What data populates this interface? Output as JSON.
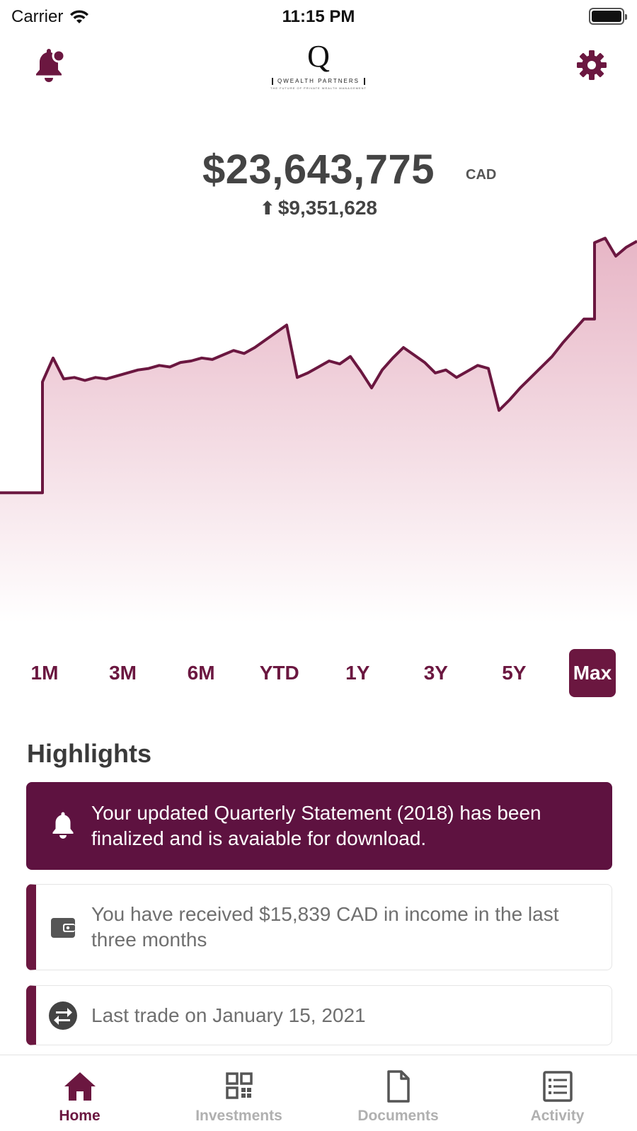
{
  "status_bar": {
    "carrier": "Carrier",
    "time": "11:15 PM"
  },
  "header": {
    "logo_letter": "Q",
    "logo_name": "QWEALTH PARTNERS",
    "logo_tagline": "THE FUTURE OF PRIVATE WEALTH MANAGEMENT",
    "notification_icon": "bell-with-badge-icon",
    "settings_icon": "gear-icon"
  },
  "portfolio": {
    "balance": "$23,643,775",
    "currency": "CAD",
    "change_arrow": "⬆",
    "change": "$9,351,628"
  },
  "chart_data": {
    "type": "area",
    "title": "",
    "xlabel": "",
    "ylabel": "",
    "line_color": "#6b1740",
    "fill_color": "#e8b6c6",
    "x": [
      0,
      1,
      2,
      3,
      4,
      5,
      6,
      7,
      8,
      9,
      10,
      11,
      12,
      13,
      14,
      15,
      16,
      17,
      18,
      19,
      20,
      21,
      22,
      23,
      24,
      25,
      26,
      27,
      28,
      29,
      30,
      31,
      32,
      33,
      34,
      35,
      36,
      37,
      38,
      39,
      40,
      41,
      42,
      43,
      44,
      45,
      46,
      47,
      48,
      49,
      50,
      51,
      52,
      53,
      54,
      55,
      56,
      57,
      58,
      59,
      60
    ],
    "values": [
      6.8,
      6.8,
      6.8,
      6.8,
      14.2,
      15.8,
      14.4,
      14.5,
      14.3,
      14.5,
      14.4,
      14.6,
      14.8,
      15.0,
      15.1,
      15.3,
      15.2,
      15.5,
      15.6,
      15.8,
      15.7,
      16.0,
      16.3,
      16.1,
      16.5,
      17.0,
      17.5,
      18.0,
      14.5,
      14.8,
      15.2,
      15.6,
      15.4,
      15.9,
      14.9,
      13.8,
      15.0,
      15.8,
      16.5,
      16.0,
      15.5,
      14.8,
      15.0,
      14.5,
      14.9,
      15.3,
      15.1,
      12.3,
      13.0,
      13.8,
      14.5,
      15.2,
      15.9,
      16.8,
      17.6,
      18.4,
      23.5,
      23.8,
      22.6,
      23.2,
      23.6
    ],
    "ylim": [
      0,
      26
    ]
  },
  "ranges": [
    {
      "label": "1M",
      "active": false
    },
    {
      "label": "3M",
      "active": false
    },
    {
      "label": "6M",
      "active": false
    },
    {
      "label": "YTD",
      "active": false
    },
    {
      "label": "1Y",
      "active": false
    },
    {
      "label": "3Y",
      "active": false
    },
    {
      "label": "5Y",
      "active": false
    },
    {
      "label": "Max",
      "active": true
    }
  ],
  "highlights": {
    "title": "Highlights",
    "statement": {
      "icon": "bell-icon",
      "text": "Your updated Quarterly  Statement (2018) has been finalized and is avaiable for download."
    },
    "income": {
      "icon": "wallet-icon",
      "text": "You have received $15,839 CAD in income in the last three months"
    },
    "trade": {
      "icon": "exchange-icon",
      "text": "Last trade on January 15, 2021"
    }
  },
  "tabs": [
    {
      "label": "Home",
      "icon": "home-icon",
      "active": true
    },
    {
      "label": "Investments",
      "icon": "grid-icon",
      "active": false
    },
    {
      "label": "Documents",
      "icon": "document-icon",
      "active": false
    },
    {
      "label": "Activity",
      "icon": "list-icon",
      "active": false
    }
  ]
}
